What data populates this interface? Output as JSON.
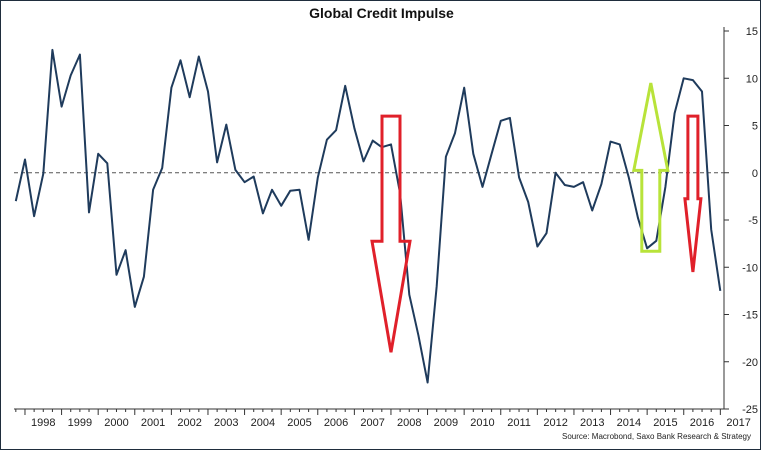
{
  "chart_data": {
    "type": "line",
    "title": "Global Credit Impulse",
    "source": "Source: Macrobond, Saxo Bank Research & Strategy",
    "xlabel": "",
    "ylabel": "",
    "ylim": [
      -25,
      15
    ],
    "yticks": [
      15,
      10,
      5,
      0,
      -5,
      -10,
      -15,
      -20,
      -25
    ],
    "year_labels": [
      "1998",
      "1999",
      "2000",
      "2001",
      "2002",
      "2003",
      "2004",
      "2005",
      "2006",
      "2007",
      "2008",
      "2009",
      "2010",
      "2011",
      "2012",
      "2013",
      "2014",
      "2015",
      "2016",
      "2017"
    ],
    "zero_line": "dashed",
    "line_color": "#1f3b5c",
    "series": [
      {
        "x": [
          1997.75,
          1998.0,
          1998.25,
          1998.5,
          1998.75,
          1999.0,
          1999.25,
          1999.5,
          1999.75,
          2000.0,
          2000.25,
          2000.5,
          2000.75,
          2001.0,
          2001.25,
          2001.5,
          2001.75,
          2002.0,
          2002.25,
          2002.5,
          2002.75,
          2003.0,
          2003.25,
          2003.5,
          2003.75,
          2004.0,
          2004.25,
          2004.5,
          2004.75,
          2005.0,
          2005.25,
          2005.5,
          2005.75,
          2006.0,
          2006.25,
          2006.5,
          2006.75,
          2007.0,
          2007.25,
          2007.5,
          2007.75,
          2008.0,
          2008.25,
          2008.5,
          2008.75,
          2009.0,
          2009.25,
          2009.5,
          2009.75,
          2010.0,
          2010.25,
          2010.5,
          2010.75,
          2011.0,
          2011.25,
          2011.5,
          2011.75,
          2012.0,
          2012.25,
          2012.5,
          2012.75,
          2013.0,
          2013.25,
          2013.5,
          2013.75,
          2014.0,
          2014.25,
          2014.5,
          2014.75,
          2015.0,
          2015.25,
          2015.5,
          2015.75,
          2016.0,
          2016.25,
          2016.5,
          2016.75,
          2017.0
        ],
        "values": [
          -3,
          1.4,
          -4.6,
          -0.1,
          13,
          7,
          10.3,
          12.5,
          -4.2,
          2,
          1,
          -10.8,
          -8.2,
          -14.2,
          -11,
          -1.8,
          0.5,
          9,
          11.9,
          8,
          12.3,
          8.6,
          1.1,
          5.1,
          0.3,
          -1,
          -0.4,
          -4.3,
          -1.8,
          -3.5,
          -1.9,
          -1.8,
          -7.1,
          -0.5,
          3.5,
          4.5,
          9.2,
          4.7,
          1.2,
          3.4,
          2.7,
          3,
          -2.2,
          -12.9,
          -17.2,
          -22.2,
          -12,
          1.7,
          4.2,
          9,
          2,
          -1.5,
          2,
          5.5,
          5.8,
          -0.5,
          -3.1,
          -7.8,
          -6.4,
          0,
          -1.3,
          -1.5,
          -1,
          -4,
          -1.2,
          3.3,
          3,
          -0.5,
          -4.8,
          -8,
          -7.2,
          -1.5,
          6.3,
          10,
          9.8,
          8.6,
          -6,
          -12.5
        ]
      }
    ],
    "annotations": [
      {
        "type": "arrow-down",
        "color": "#e0202a",
        "x": 2008.0,
        "from": 6,
        "to": -19
      },
      {
        "type": "arrow-up",
        "color": "#b8e33a",
        "x": 2015.1,
        "from": -8.3,
        "to": 9.5
      },
      {
        "type": "arrow-down",
        "color": "#e0202a",
        "x": 2016.25,
        "from": 6,
        "to": -10.5
      }
    ]
  }
}
